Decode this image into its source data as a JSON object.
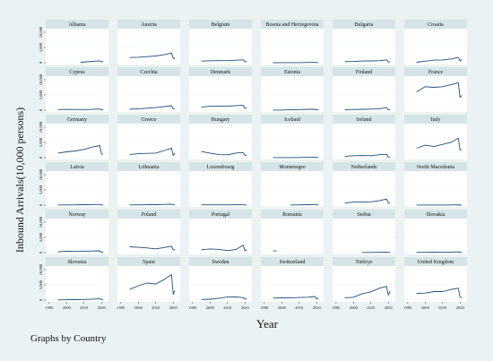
{
  "chart_data": {
    "type": "line",
    "layout": "small multiples, 6 columns x 6 rows",
    "xlabel": "Year",
    "ylabel": "Inbound Arrivals(10,000 persons)",
    "note": "Graphs by Country",
    "xlim": [
      1988,
      2024
    ],
    "x_ticks": [
      1990,
      2000,
      2010,
      2020
    ],
    "ylim": [
      0,
      10000
    ],
    "y_ticks": [
      0,
      5000,
      10000
    ],
    "y_tick_labels": [
      "0",
      "5,000",
      "10,000"
    ],
    "colors": {
      "line": "#1f4e79",
      "strip": "#d6e4e7",
      "outer": "#eaf2f3"
    },
    "panels": [
      {
        "name": "Albania",
        "x": [
          2008,
          2019,
          2020,
          2021
        ],
        "y": [
          142,
          626,
          265,
          550
        ]
      },
      {
        "name": "Austria",
        "x": [
          1995,
          2000,
          2005,
          2010,
          2015,
          2019,
          2020,
          2021
        ],
        "y": [
          1717,
          1800,
          2000,
          2200,
          2680,
          3190,
          1540,
          1270
        ]
      },
      {
        "name": "Belgium",
        "x": [
          1995,
          2000,
          2005,
          2010,
          2015,
          2019,
          2020,
          2021
        ],
        "y": [
          528,
          640,
          680,
          720,
          830,
          940,
          290,
          390
        ]
      },
      {
        "name": "Bosnia and Herzegovina",
        "x": [
          1995,
          2000,
          2010,
          2019,
          2020,
          2021
        ],
        "y": [
          3,
          17,
          37,
          120,
          20,
          50
        ]
      },
      {
        "name": "Bulgaria",
        "x": [
          1995,
          2000,
          2005,
          2010,
          2015,
          2019,
          2020,
          2021
        ],
        "y": [
          350,
          420,
          560,
          600,
          690,
          930,
          250,
          320
        ]
      },
      {
        "name": "Croatia",
        "x": [
          1995,
          2000,
          2005,
          2010,
          2015,
          2019,
          2020,
          2021
        ],
        "y": [
          150,
          500,
          850,
          900,
          1240,
          1740,
          550,
          1050
        ]
      },
      {
        "name": "Cyprus",
        "x": [
          1995,
          2000,
          2005,
          2010,
          2015,
          2019,
          2020,
          2021
        ],
        "y": [
          210,
          270,
          240,
          220,
          270,
          400,
          60,
          190
        ]
      },
      {
        "name": "Czechia",
        "x": [
          1995,
          2000,
          2005,
          2010,
          2015,
          2019,
          2020,
          2021
        ],
        "y": [
          330,
          480,
          640,
          860,
          1200,
          1460,
          500,
          460
        ]
      },
      {
        "name": "Denmark",
        "x": [
          1995,
          2000,
          2005,
          2010,
          2015,
          2019,
          2020,
          2021
        ],
        "y": [
          1000,
          1300,
          1300,
          1330,
          1500,
          1600,
          600,
          870
        ]
      },
      {
        "name": "Estonia",
        "x": [
          1995,
          2000,
          2005,
          2010,
          2015,
          2019,
          2020,
          2021
        ],
        "y": [
          40,
          60,
          190,
          210,
          300,
          330,
          100,
          110
        ]
      },
      {
        "name": "Finland",
        "x": [
          1995,
          2000,
          2005,
          2010,
          2015,
          2019,
          2020,
          2021
        ],
        "y": [
          180,
          240,
          300,
          360,
          470,
          860,
          200,
          100
        ]
      },
      {
        "name": "France",
        "x": [
          1995,
          2000,
          2005,
          2010,
          2015,
          2019,
          2020,
          2021
        ],
        "y": [
          6000,
          7700,
          7500,
          7700,
          8400,
          9000,
          4200,
          4800
        ]
      },
      {
        "name": "Germany",
        "x": [
          1995,
          2000,
          2005,
          2010,
          2015,
          2019,
          2020,
          2021
        ],
        "y": [
          1500,
          1900,
          2200,
          2700,
          3500,
          3960,
          1240,
          1180
        ]
      },
      {
        "name": "Greece",
        "x": [
          1995,
          2000,
          2005,
          2010,
          2015,
          2019,
          2020,
          2021
        ],
        "y": [
          1000,
          1300,
          1400,
          1500,
          2360,
          3130,
          740,
          1470
        ]
      },
      {
        "name": "Hungary",
        "x": [
          1995,
          2000,
          2005,
          2010,
          2015,
          2019,
          2020,
          2021
        ],
        "y": [
          2000,
          1500,
          1000,
          940,
          1540,
          1690,
          740,
          790
        ]
      },
      {
        "name": "Iceland",
        "x": [
          1995,
          2000,
          2005,
          2010,
          2015,
          2019,
          2020,
          2021
        ],
        "y": [
          20,
          30,
          40,
          50,
          130,
          200,
          50,
          70
        ]
      },
      {
        "name": "Ireland",
        "x": [
          1995,
          2000,
          2005,
          2010,
          2015,
          2019,
          2020,
          2021
        ],
        "y": [
          420,
          640,
          710,
          650,
          970,
          1090,
          240,
          250
        ]
      },
      {
        "name": "Italy",
        "x": [
          1995,
          2000,
          2005,
          2010,
          2015,
          2019,
          2020,
          2021
        ],
        "y": [
          3100,
          4100,
          3650,
          4350,
          5070,
          6450,
          2520,
          2670
        ]
      },
      {
        "name": "Latvia",
        "x": [
          1995,
          2000,
          2005,
          2010,
          2015,
          2019,
          2020,
          2021
        ],
        "y": [
          50,
          60,
          100,
          140,
          200,
          200,
          60,
          60
        ]
      },
      {
        "name": "Lithuania",
        "x": [
          1995,
          2000,
          2005,
          2010,
          2015,
          2019,
          2020,
          2021
        ],
        "y": [
          60,
          90,
          120,
          150,
          230,
          300,
          90,
          100
        ]
      },
      {
        "name": "Luxembourg",
        "x": [
          1995,
          2000,
          2005,
          2010,
          2015,
          2019,
          2020,
          2021
        ],
        "y": [
          77,
          85,
          91,
          79,
          106,
          104,
          53,
          70
        ]
      },
      {
        "name": "Montenegro",
        "x": [
          2005,
          2010,
          2015,
          2019,
          2020,
          2021
        ],
        "y": [
          27,
          100,
          160,
          250,
          40,
          130
        ]
      },
      {
        "name": "Netherlands",
        "x": [
          1995,
          2000,
          2005,
          2010,
          2015,
          2019,
          2020,
          2021
        ],
        "y": [
          660,
          1000,
          1000,
          1090,
          1500,
          2010,
          730,
          660
        ]
      },
      {
        "name": "North Macedonia",
        "x": [
          1995,
          2000,
          2005,
          2010,
          2015,
          2019,
          2020,
          2021
        ],
        "y": [
          15,
          22,
          20,
          26,
          48,
          76,
          12,
          35
        ]
      },
      {
        "name": "Norway",
        "x": [
          1995,
          2000,
          2005,
          2010,
          2015,
          2019,
          2020,
          2021
        ],
        "y": [
          260,
          470,
          380,
          480,
          530,
          590,
          140,
          120
        ]
      },
      {
        "name": "Poland",
        "x": [
          1995,
          2000,
          2005,
          2010,
          2015,
          2019,
          2020,
          2021
        ],
        "y": [
          1920,
          1740,
          1520,
          1250,
          1680,
          2120,
          840,
          970
        ]
      },
      {
        "name": "Portugal",
        "x": [
          1995,
          2000,
          2005,
          2010,
          2015,
          2019,
          2020,
          2021
        ],
        "y": [
          950,
          1200,
          1050,
          680,
          1020,
          2460,
          650,
          980
        ]
      },
      {
        "name": "Romania",
        "x": [
          1995,
          1996,
          1997
        ],
        "y": [
          560,
          560,
          520
        ]
      },
      {
        "name": "Serbia",
        "x": [
          2005,
          2010,
          2015,
          2019,
          2020,
          2021
        ],
        "y": [
          45,
          68,
          113,
          185,
          45,
          87
        ]
      },
      {
        "name": "Slovakia",
        "x": [
          1995,
          2000,
          2005,
          2010,
          2015,
          2019,
          2020,
          2021
        ],
        "y": [
          90,
          100,
          150,
          130,
          170,
          240,
          110,
          70
        ]
      },
      {
        "name": "Slovenia",
        "x": [
          1995,
          2000,
          2005,
          2010,
          2015,
          2019,
          2020,
          2021
        ],
        "y": [
          73,
          110,
          160,
          200,
          310,
          470,
          210,
          270
        ]
      },
      {
        "name": "Spain",
        "x": [
          1995,
          2000,
          2005,
          2010,
          2015,
          2019,
          2020,
          2021
        ],
        "y": [
          3500,
          4700,
          5600,
          5270,
          6820,
          8350,
          1900,
          3120
        ]
      },
      {
        "name": "Sweden",
        "x": [
          1995,
          2000,
          2005,
          2010,
          2015,
          2019,
          2020,
          2021
        ],
        "y": [
          200,
          300,
          620,
          1000,
          1050,
          780,
          400,
          500
        ]
      },
      {
        "name": "Switzerland",
        "x": [
          1995,
          2000,
          2005,
          2010,
          2015,
          2019,
          2020,
          2021
        ],
        "y": [
          650,
          730,
          720,
          850,
          930,
          1180,
          370,
          440
        ]
      },
      {
        "name": "Türkiye",
        "x": [
          1995,
          2000,
          2005,
          2010,
          2015,
          2019,
          2020,
          2021
        ],
        "y": [
          700,
          950,
          2100,
          2700,
          3900,
          4500,
          1600,
          3000
        ]
      },
      {
        "name": "United Kingdom",
        "x": [
          1995,
          2000,
          2005,
          2010,
          2015,
          2019,
          2020,
          2021
        ],
        "y": [
          2200,
          2300,
          2800,
          2800,
          3500,
          3900,
          1100,
          640
        ]
      }
    ]
  }
}
